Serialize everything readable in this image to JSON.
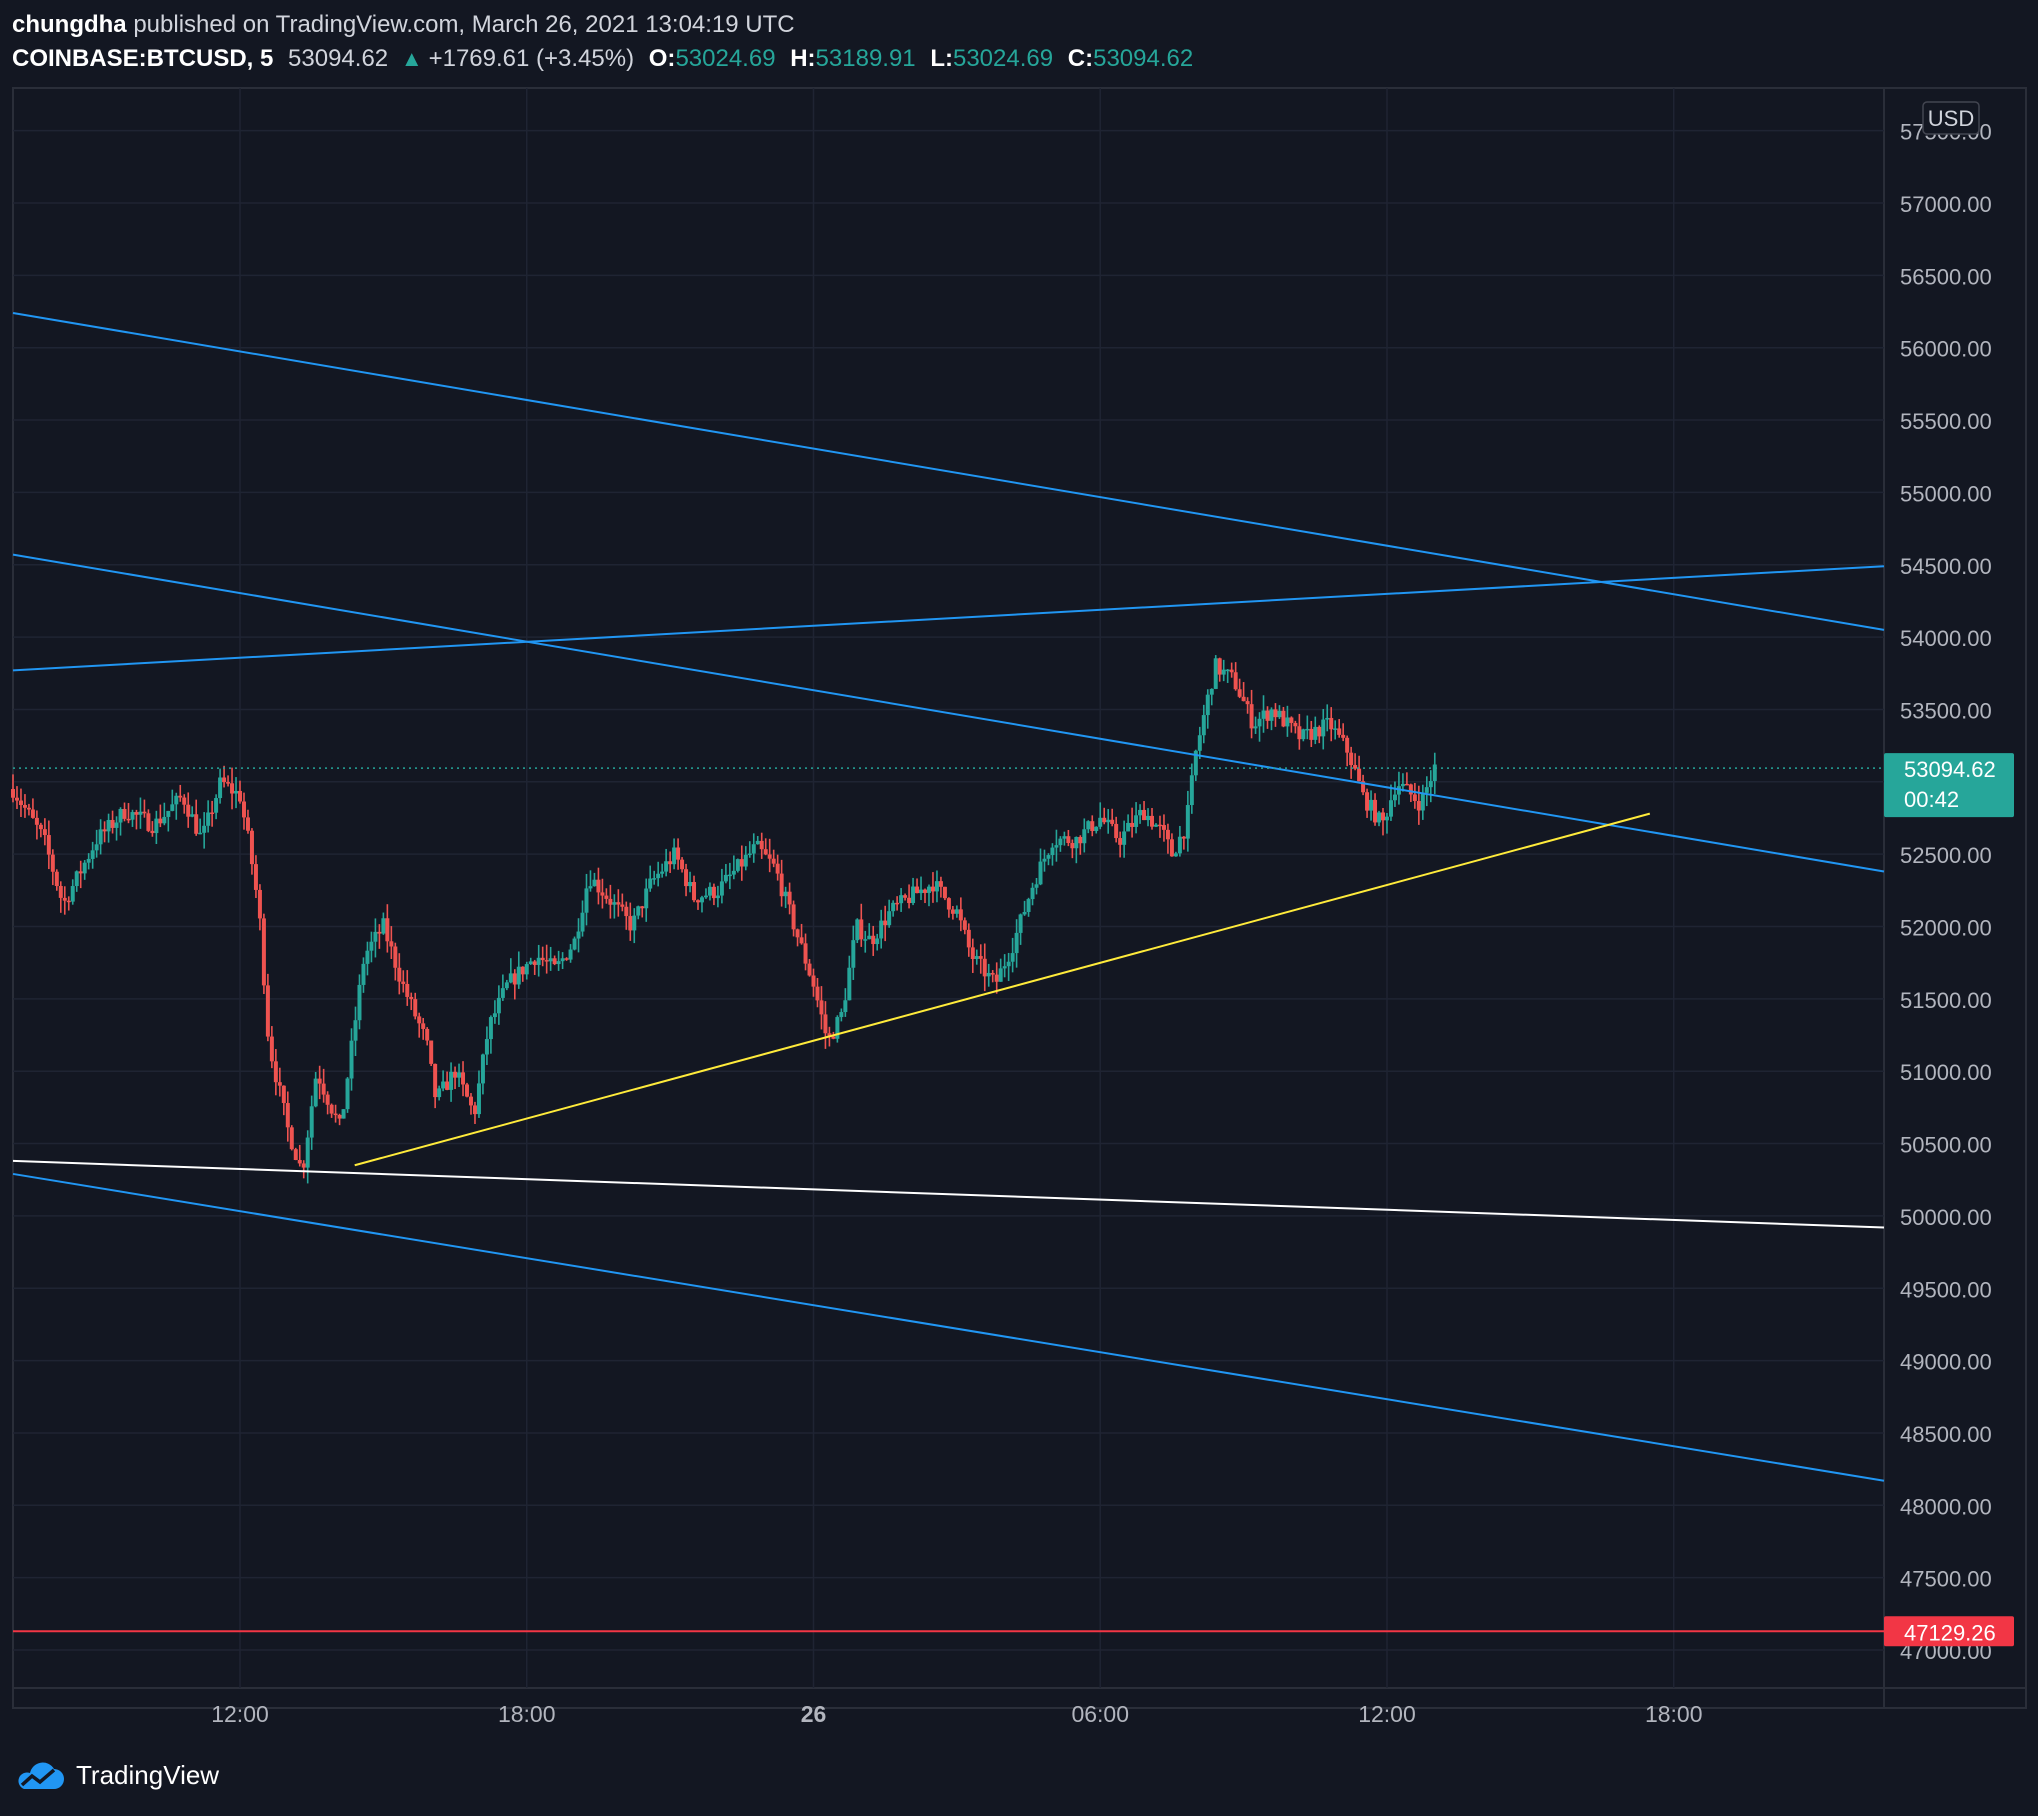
{
  "header": {
    "author": "chungdha",
    "published": "published on TradingView.com, March 26, 2021 13:04:19 UTC"
  },
  "legend": {
    "symbol": "COINBASE:BTCUSD, 5",
    "price": "53094.62",
    "change": "+1769.61 (+3.45%)",
    "open_label": "O:",
    "open": "53024.69",
    "high_label": "H:",
    "high": "53189.91",
    "low_label": "L:",
    "low": "53024.69",
    "close_label": "C:",
    "close": "53094.62"
  },
  "colors": {
    "background": "#131722",
    "up": "#26a69a",
    "down": "#ef5350",
    "channel_lines": "#2196f3",
    "support_line": "#ffeb3b",
    "base_line": "#ffffff",
    "alert_line": "#f23645",
    "last_price_badge": "#26a69a",
    "alert_badge": "#f23645"
  },
  "footer": {
    "brand": "TradingView",
    "logo_icon": "tradingview-cloud-icon"
  },
  "chart_data": {
    "type": "candlestick",
    "currency": "USD",
    "ylim": [
      46700,
      57500
    ],
    "y_ticks": [
      "47000.00",
      "47500.00",
      "48000.00",
      "48500.00",
      "49000.00",
      "49500.00",
      "50000.00",
      "50500.00",
      "51000.00",
      "51500.00",
      "52000.00",
      "52500.00",
      "53000.00",
      "53500.00",
      "54000.00",
      "54500.00",
      "55000.00",
      "55500.00",
      "56000.00",
      "56500.00",
      "57000.00",
      "57500.00"
    ],
    "x_ticks": [
      "12:00",
      "18:00",
      "26",
      "06:00",
      "12:00",
      "18:00"
    ],
    "x_tick_bold": [
      false,
      false,
      true,
      false,
      false,
      false
    ],
    "x_tick_hours": [
      12,
      18,
      24,
      30,
      36,
      42
    ],
    "x_range_hours": [
      7.25,
      46.4
    ],
    "last_price": {
      "value": 53094.62,
      "label": "53094.62",
      "countdown": "00:42"
    },
    "alert_price": {
      "value": 47129.26,
      "label": "47129.26"
    },
    "price_path": [
      [
        7.25,
        52950
      ],
      [
        7.9,
        52600
      ],
      [
        8.3,
        52150
      ],
      [
        9.0,
        52600
      ],
      [
        9.6,
        52800
      ],
      [
        10.2,
        52700
      ],
      [
        10.8,
        52900
      ],
      [
        11.2,
        52600
      ],
      [
        11.6,
        53000
      ],
      [
        12.0,
        52900
      ],
      [
        12.2,
        52550
      ],
      [
        12.4,
        52100
      ],
      [
        12.6,
        51200
      ],
      [
        13.0,
        50600
      ],
      [
        13.3,
        50300
      ],
      [
        13.6,
        51000
      ],
      [
        14.1,
        50600
      ],
      [
        14.6,
        51800
      ],
      [
        15.0,
        52000
      ],
      [
        15.4,
        51600
      ],
      [
        15.9,
        51200
      ],
      [
        16.1,
        50800
      ],
      [
        16.5,
        51000
      ],
      [
        16.9,
        50700
      ],
      [
        17.2,
        51300
      ],
      [
        17.6,
        51600
      ],
      [
        18.2,
        51800
      ],
      [
        18.6,
        51700
      ],
      [
        19.0,
        51900
      ],
      [
        19.3,
        52350
      ],
      [
        19.7,
        52200
      ],
      [
        20.2,
        52000
      ],
      [
        20.6,
        52300
      ],
      [
        21.1,
        52500
      ],
      [
        21.5,
        52200
      ],
      [
        22.0,
        52250
      ],
      [
        22.4,
        52400
      ],
      [
        22.8,
        52550
      ],
      [
        23.2,
        52400
      ],
      [
        23.7,
        51900
      ],
      [
        24.0,
        51600
      ],
      [
        24.3,
        51200
      ],
      [
        24.6,
        51400
      ],
      [
        24.9,
        52000
      ],
      [
        25.2,
        51900
      ],
      [
        25.6,
        52100
      ],
      [
        26.0,
        52200
      ],
      [
        26.5,
        52300
      ],
      [
        27.0,
        52100
      ],
      [
        27.3,
        51800
      ],
      [
        27.8,
        51600
      ],
      [
        28.2,
        51900
      ],
      [
        28.6,
        52300
      ],
      [
        29.0,
        52600
      ],
      [
        29.5,
        52600
      ],
      [
        30.0,
        52750
      ],
      [
        30.4,
        52600
      ],
      [
        30.9,
        52800
      ],
      [
        31.3,
        52650
      ],
      [
        31.5,
        52500
      ],
      [
        31.8,
        52700
      ],
      [
        32.0,
        53200
      ],
      [
        32.4,
        53800
      ],
      [
        32.8,
        53700
      ],
      [
        33.2,
        53400
      ],
      [
        33.6,
        53500
      ],
      [
        34.2,
        53300
      ],
      [
        34.8,
        53400
      ],
      [
        35.2,
        53200
      ],
      [
        35.5,
        52900
      ],
      [
        35.9,
        52700
      ],
      [
        36.2,
        53000
      ],
      [
        36.7,
        52850
      ],
      [
        37.0,
        53094.62
      ]
    ],
    "drawings": [
      {
        "id": "blue-upper-down",
        "color": "blue",
        "p1": [
          7.25,
          56240
        ],
        "p2": [
          46.4,
          54050
        ]
      },
      {
        "id": "blue-rising",
        "color": "blue",
        "p1": [
          7.25,
          53770
        ],
        "p2": [
          46.4,
          54490
        ]
      },
      {
        "id": "blue-mid-down",
        "color": "blue",
        "p1": [
          7.25,
          54570
        ],
        "p2": [
          46.4,
          52380
        ]
      },
      {
        "id": "blue-lower-down",
        "color": "blue",
        "p1": [
          7.25,
          50290
        ],
        "p2": [
          46.4,
          48170
        ]
      },
      {
        "id": "white-base",
        "color": "white",
        "p1": [
          7.25,
          50380
        ],
        "p2": [
          46.4,
          49920
        ]
      },
      {
        "id": "yellow-support",
        "color": "yellow",
        "p1": [
          14.4,
          50350
        ],
        "p2": [
          41.5,
          52780
        ]
      }
    ]
  }
}
